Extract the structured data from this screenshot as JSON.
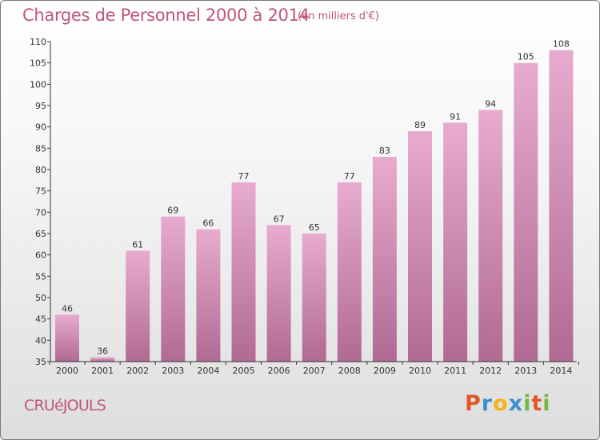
{
  "title": "Charges de Personnel 2000 à 2014",
  "subtitle": "(en milliers d'€)",
  "commune": "CRUéJOULS",
  "logo": {
    "p": "P",
    "r": "r",
    "o": "o",
    "x": "x",
    "i": "i",
    "t": "t",
    "i2": "i"
  },
  "colors": {
    "bar_top": "#e8abcf",
    "bar_bottom": "#b06a94",
    "title": "#c0557f",
    "axis": "#333333"
  },
  "chart_data": {
    "type": "bar",
    "categories": [
      "2000",
      "2001",
      "2002",
      "2003",
      "2004",
      "2005",
      "2006",
      "2007",
      "2008",
      "2009",
      "2010",
      "2011",
      "2012",
      "2013",
      "2014"
    ],
    "values": [
      46,
      36,
      61,
      69,
      66,
      77,
      67,
      65,
      77,
      83,
      89,
      91,
      94,
      105,
      108
    ],
    "ylim": [
      35,
      110
    ],
    "yticks": [
      35,
      40,
      45,
      50,
      55,
      60,
      65,
      70,
      75,
      80,
      85,
      90,
      95,
      100,
      105,
      110
    ],
    "title": "Charges de Personnel 2000 à 2014",
    "xlabel": "",
    "ylabel": "",
    "grid": false
  }
}
